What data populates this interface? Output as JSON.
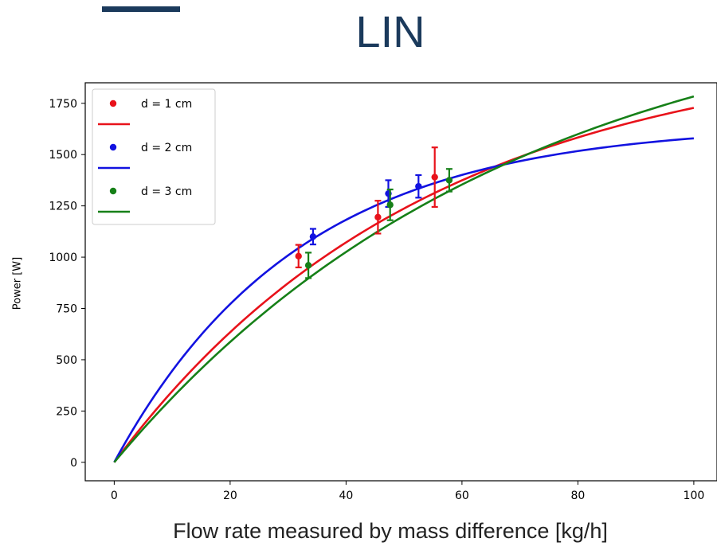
{
  "page": {
    "title": "LIN",
    "accent_color": "#1b3a5c"
  },
  "chart_data": {
    "type": "scatter",
    "title": "",
    "xlabel": "Flow rate measured by mass difference [kg/h]",
    "ylabel": "Power [W]",
    "xlim": [
      -5,
      104
    ],
    "ylim": [
      -90,
      1850
    ],
    "xticks": [
      0,
      20,
      40,
      60,
      80,
      100
    ],
    "yticks": [
      0,
      250,
      500,
      750,
      1000,
      1250,
      1500,
      1750
    ],
    "legend_position": "top-left",
    "series": [
      {
        "name": "d = 1 cm",
        "color": "#e8121a",
        "points": [
          {
            "x": 31.8,
            "y": 1005,
            "err": 55
          },
          {
            "x": 45.5,
            "y": 1195,
            "err": 80
          },
          {
            "x": 55.3,
            "y": 1390,
            "err": 145
          }
        ],
        "fit": {
          "A": 2050,
          "k": 0.0185
        }
      },
      {
        "name": "d = 2 cm",
        "color": "#1212e0",
        "points": [
          {
            "x": 34.3,
            "y": 1100,
            "err": 38
          },
          {
            "x": 47.3,
            "y": 1310,
            "err": 65
          },
          {
            "x": 52.5,
            "y": 1345,
            "err": 55
          }
        ],
        "fit": {
          "A": 1650,
          "k": 0.0315
        }
      },
      {
        "name": "d = 3 cm",
        "color": "#168018",
        "points": [
          {
            "x": 33.5,
            "y": 960,
            "err": 62
          },
          {
            "x": 47.6,
            "y": 1255,
            "err": 75
          },
          {
            "x": 57.8,
            "y": 1375,
            "err": 55
          }
        ],
        "fit": {
          "A": 2330,
          "k": 0.0145
        }
      }
    ]
  }
}
